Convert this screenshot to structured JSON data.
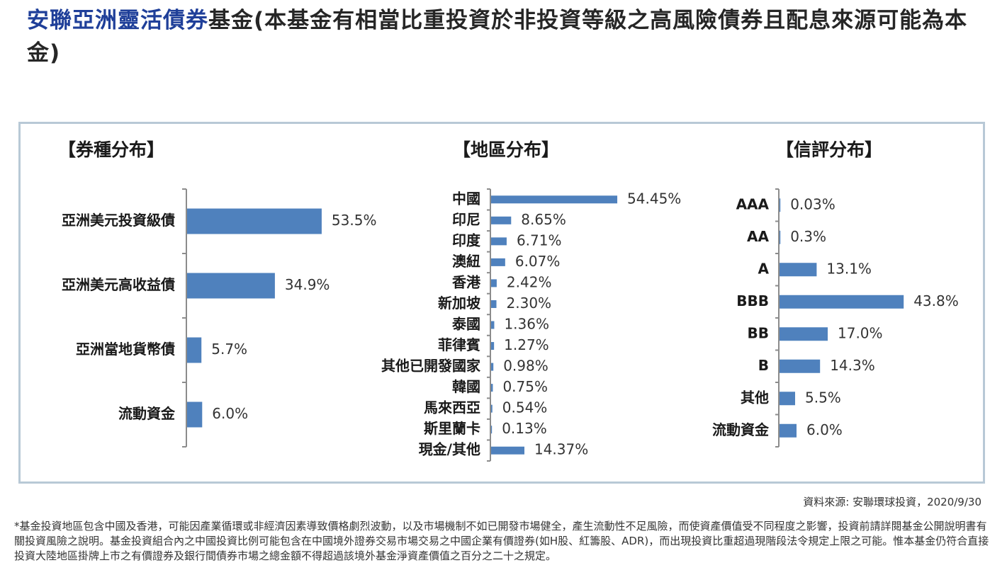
{
  "title": {
    "highlight": "安聯亞洲靈活債券",
    "rest": "基金(本基金有相當比重投資於非投資等級之高風險債券且配息來源可能為本金)"
  },
  "colors": {
    "bar": "#4f81bd",
    "axis": "#8c8c8c",
    "panel_border": "#b8c9d6",
    "title_highlight": "#1f3f99"
  },
  "chart_data": [
    {
      "type": "bar",
      "orientation": "horizontal",
      "title": "【券種分布】",
      "categories": [
        "亞洲美元投資級債",
        "亞洲美元高收益債",
        "亞洲當地貨幣債",
        "流動資金"
      ],
      "values": [
        53.5,
        34.9,
        5.7,
        6.0
      ],
      "value_labels": [
        "53.5%",
        "34.9%",
        "5.7%",
        "6.0%"
      ],
      "xlim": [
        0,
        100
      ],
      "grid": false
    },
    {
      "type": "bar",
      "orientation": "horizontal",
      "title": "【地區分布】",
      "categories": [
        "中國",
        "印尼",
        "印度",
        "澳紐",
        "香港",
        "新加坡",
        "泰國",
        "菲律賓",
        "其他已開發國家",
        "韓國",
        "馬來西亞",
        "斯里蘭卡",
        "現金/其他"
      ],
      "values": [
        54.45,
        8.65,
        6.71,
        6.07,
        2.42,
        2.3,
        1.36,
        1.27,
        0.98,
        0.75,
        0.54,
        0.13,
        14.37
      ],
      "value_labels": [
        "54.45%",
        "8.65%",
        "6.71%",
        "6.07%",
        "2.42%",
        "2.30%",
        "1.36%",
        "1.27%",
        "0.98%",
        "0.75%",
        "0.54%",
        "0.13%",
        "14.37%"
      ],
      "xlim": [
        0,
        100
      ],
      "grid": false
    },
    {
      "type": "bar",
      "orientation": "horizontal",
      "title": "【信評分布】",
      "categories": [
        "AAA",
        "AA",
        "A",
        "BBB",
        "BB",
        "B",
        "其他",
        "流動資金"
      ],
      "values": [
        0.03,
        0.3,
        13.1,
        43.8,
        17.0,
        14.3,
        5.5,
        6.0
      ],
      "value_labels": [
        "0.03%",
        "0.3%",
        "13.1%",
        "43.8%",
        "17.0%",
        "14.3%",
        "5.5%",
        "6.0%"
      ],
      "xlim": [
        0,
        100
      ],
      "grid": false
    }
  ],
  "source": "資料來源: 安聯環球投資，2020/9/30",
  "footnote": "*基金投資地區包含中國及香港，可能因產業循環或非經濟因素導致價格劇烈波動，以及市場機制不如已開發市場健全，產生流動性不足風險，而使資產價值受不同程度之影響，投資前請詳閱基金公開說明書有關投資風險之說明。基金投資組合內之中國投資比例可能包含在中國境外證券交易市場交易之中國企業有價證券(如H股、紅籌股、ADR)，而出現投資比重超過現階段法令規定上限之可能。惟本基金仍符合直接投資大陸地區掛牌上市之有價證券及銀行間債券市場之總金額不得超過該境外基金淨資產價值之百分之二十之規定。"
}
